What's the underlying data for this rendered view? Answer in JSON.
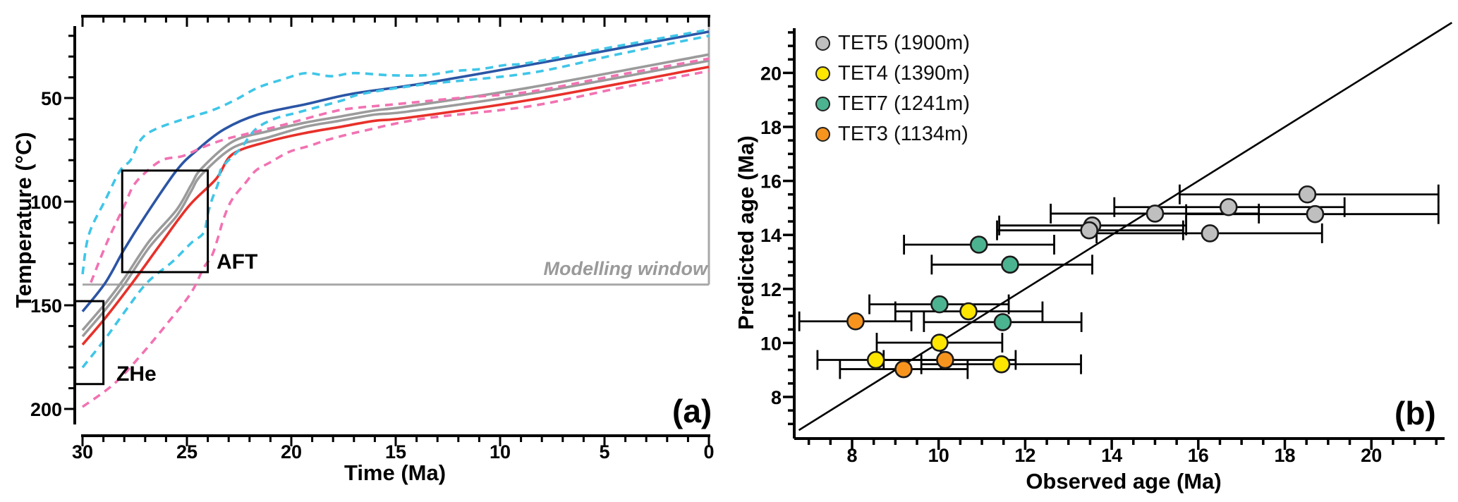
{
  "chart_data": [
    {
      "type": "line",
      "panel_label": "(a)",
      "xlabel": "Time (Ma)",
      "ylabel": "Temperature (°C)",
      "x_axis": {
        "min": 0,
        "max": 30,
        "reversed": true,
        "major_ticks": [
          30,
          25,
          20,
          15,
          10,
          5,
          0
        ],
        "minor_step_ma": 1
      },
      "y_axis": {
        "min": 10,
        "max": 210,
        "inverted": true,
        "major_ticks": [
          50,
          100,
          150,
          200
        ],
        "minor_step_c": 10
      },
      "modelling_window": {
        "label": "Modelling window",
        "temperature_c": 140,
        "right_edge_time_ma": 0,
        "line_color": "#a8a8a8"
      },
      "boxes": [
        {
          "label": "AFT",
          "time_range_ma": [
            24.0,
            28.1
          ],
          "temp_range_c": [
            85,
            134
          ]
        },
        {
          "label": "ZHe",
          "time_range_ma": [
            29.0,
            30.35
          ],
          "temp_range_c": [
            148,
            188
          ]
        }
      ],
      "series": [
        {
          "name": "gray-path-upper",
          "color": "#9b9b9b",
          "style": "solid",
          "points": [
            [
              30,
              162
            ],
            [
              28.9,
              149
            ],
            [
              28,
              137
            ],
            [
              26.8,
              119
            ],
            [
              25.5,
              104
            ],
            [
              24.8,
              92
            ],
            [
              24.3,
              84
            ],
            [
              22.8,
              71
            ],
            [
              21.1,
              66
            ],
            [
              19.4,
              62
            ],
            [
              17.7,
              59
            ],
            [
              16,
              56
            ],
            [
              14.4,
              54
            ],
            [
              8.6,
              45
            ],
            [
              0,
              29
            ]
          ]
        },
        {
          "name": "gray-path-lower",
          "color": "#9b9b9b",
          "style": "solid",
          "points": [
            [
              30,
              165
            ],
            [
              28.9,
              152
            ],
            [
              28,
              140
            ],
            [
              26.8,
              122
            ],
            [
              25.5,
              107
            ],
            [
              24.8,
              95
            ],
            [
              24.3,
              87
            ],
            [
              22.8,
              74
            ],
            [
              21.1,
              69
            ],
            [
              19.4,
              64
            ],
            [
              17.7,
              61
            ],
            [
              16,
              58
            ],
            [
              14.4,
              56.5
            ],
            [
              8.6,
              48
            ],
            [
              0,
              32
            ]
          ]
        },
        {
          "name": "blue-path",
          "color": "#2b55a5",
          "style": "solid",
          "points": [
            [
              30,
              153
            ],
            [
              28.9,
              139
            ],
            [
              28,
              123
            ],
            [
              27,
              107
            ],
            [
              25.5,
              85
            ],
            [
              24.5,
              75
            ],
            [
              23.2,
              65
            ],
            [
              21.6,
              58
            ],
            [
              19.3,
              53
            ],
            [
              17.1,
              48
            ],
            [
              13.7,
              43
            ],
            [
              8.6,
              34
            ],
            [
              0,
              18
            ]
          ]
        },
        {
          "name": "red-path",
          "color": "#e8302a",
          "style": "solid",
          "points": [
            [
              30,
              169
            ],
            [
              28.9,
              156
            ],
            [
              27.6,
              139
            ],
            [
              26.3,
              121
            ],
            [
              24.9,
              102
            ],
            [
              23.6,
              89
            ],
            [
              22.8,
              77
            ],
            [
              21.1,
              71
            ],
            [
              19.4,
              67
            ],
            [
              17.7,
              64
            ],
            [
              16,
              61
            ],
            [
              14.4,
              59.5
            ],
            [
              8.6,
              51
            ],
            [
              0,
              35
            ]
          ]
        },
        {
          "name": "cyan-envelope-upper",
          "color": "#3fc6e8",
          "style": "dashed",
          "points": [
            [
              30,
              135
            ],
            [
              29.7,
              116
            ],
            [
              28.9,
              99
            ],
            [
              28.2,
              85
            ],
            [
              27.7,
              80
            ],
            [
              27.2,
              70
            ],
            [
              26.5,
              65
            ],
            [
              25.1,
              60
            ],
            [
              23.8,
              56
            ],
            [
              22.7,
              51
            ],
            [
              21.6,
              45
            ],
            [
              20.4,
              41
            ],
            [
              19.3,
              38
            ],
            [
              18.1,
              39.5
            ],
            [
              17,
              38
            ],
            [
              15.3,
              39
            ],
            [
              13.6,
              39
            ],
            [
              12.2,
              37
            ],
            [
              10.9,
              36
            ],
            [
              9.7,
              34
            ],
            [
              8.6,
              33
            ],
            [
              4.4,
              25
            ],
            [
              0,
              17
            ]
          ]
        },
        {
          "name": "cyan-envelope-lower",
          "color": "#3fc6e8",
          "style": "dashed",
          "points": [
            [
              30,
              180
            ],
            [
              28.9,
              166
            ],
            [
              27.9,
              152
            ],
            [
              26.9,
              139
            ],
            [
              25.7,
              129
            ],
            [
              24.8,
              120
            ],
            [
              24.2,
              115
            ],
            [
              24,
              106
            ],
            [
              23.8,
              99
            ],
            [
              23.5,
              91
            ],
            [
              23.4,
              85
            ],
            [
              23.1,
              81
            ],
            [
              22.8,
              78
            ],
            [
              22.4,
              74
            ],
            [
              21.7,
              65
            ],
            [
              20.8,
              60
            ],
            [
              19.7,
              57
            ],
            [
              18.6,
              54
            ],
            [
              17.5,
              51
            ],
            [
              16.6,
              48
            ],
            [
              13.7,
              43.5
            ],
            [
              8.6,
              38
            ],
            [
              4.4,
              29
            ],
            [
              0,
              20
            ]
          ]
        },
        {
          "name": "pink-envelope-upper",
          "color": "#f272b2",
          "style": "dashed",
          "points": [
            [
              29.6,
              139
            ],
            [
              28.8,
              119
            ],
            [
              28,
              102
            ],
            [
              27.6,
              93
            ],
            [
              27.1,
              87
            ],
            [
              26.2,
              80
            ],
            [
              25.2,
              78
            ],
            [
              24.3,
              74
            ],
            [
              23.2,
              70
            ],
            [
              22,
              67
            ],
            [
              20.4,
              63
            ],
            [
              18.2,
              57
            ],
            [
              17.1,
              55
            ],
            [
              15,
              53
            ],
            [
              12,
              50
            ],
            [
              8.6,
              47
            ],
            [
              4.4,
              39
            ],
            [
              0,
              31
            ]
          ]
        },
        {
          "name": "pink-envelope-lower",
          "color": "#f272b2",
          "style": "dashed",
          "points": [
            [
              30,
              199
            ],
            [
              28.5,
              188
            ],
            [
              27.2,
              174
            ],
            [
              25.8,
              157
            ],
            [
              24.8,
              144
            ],
            [
              24.2,
              132
            ],
            [
              23.8,
              126
            ],
            [
              23.5,
              117
            ],
            [
              23.3,
              110
            ],
            [
              23,
              102
            ],
            [
              22.7,
              97
            ],
            [
              22.2,
              91
            ],
            [
              21.7,
              85
            ],
            [
              21,
              81
            ],
            [
              20.1,
              76
            ],
            [
              19.1,
              73
            ],
            [
              18.2,
              70
            ],
            [
              16.6,
              66
            ],
            [
              13.7,
              60
            ],
            [
              8.6,
              54
            ],
            [
              4.2,
              45
            ],
            [
              0,
              37
            ]
          ]
        }
      ]
    },
    {
      "type": "scatter",
      "panel_label": "(b)",
      "xlabel": "Observed age (Ma)",
      "ylabel": "Predicted age (Ma)",
      "x_axis": {
        "min": 6.7,
        "max": 21.7,
        "major_ticks": [
          8,
          10,
          12,
          14,
          16,
          18,
          20
        ],
        "minor_step_ma": 0.5
      },
      "y_axis": {
        "min": 6.5,
        "max": 21.7,
        "major_ticks": [
          8,
          10,
          12,
          14,
          16,
          18,
          20
        ],
        "minor_step_ma": 0.5
      },
      "one_to_one_line": true,
      "series": [
        {
          "name": "TET5 (1900m)",
          "color": "#bfbfbf",
          "points": [
            {
              "obs": 13.55,
              "pred": 14.35,
              "obs_lo": 11.4,
              "obs_hi": 15.72
            },
            {
              "obs": 13.48,
              "pred": 14.17,
              "obs_lo": 11.35,
              "obs_hi": 15.65
            },
            {
              "obs": 15.0,
              "pred": 14.79,
              "obs_lo": 12.59,
              "obs_hi": 17.4
            },
            {
              "obs": 16.27,
              "pred": 14.06,
              "obs_lo": 13.65,
              "obs_hi": 18.86
            },
            {
              "obs": 16.7,
              "pred": 15.03,
              "obs_lo": 14.06,
              "obs_hi": 19.38
            },
            {
              "obs": 18.52,
              "pred": 15.5,
              "obs_lo": 15.57,
              "obs_hi": 21.55
            },
            {
              "obs": 18.7,
              "pred": 14.77,
              "obs_lo": 15.72,
              "obs_hi": 21.55
            }
          ]
        },
        {
          "name": "TET4 (1390m)",
          "color": "#ffe600",
          "points": [
            {
              "obs": 10.69,
              "pred": 11.17,
              "obs_lo": 9.0,
              "obs_hi": 12.4
            },
            {
              "obs": 10.02,
              "pred": 10.01,
              "obs_lo": 8.57,
              "obs_hi": 11.47
            },
            {
              "obs": 8.55,
              "pred": 9.37,
              "obs_lo": 7.2,
              "obs_hi": 10.05
            },
            {
              "obs": 11.45,
              "pred": 9.21,
              "obs_lo": 9.6,
              "obs_hi": 13.29
            }
          ]
        },
        {
          "name": "TET7 (1241m)",
          "color": "#4cb391",
          "points": [
            {
              "obs": 10.93,
              "pred": 13.64,
              "obs_lo": 9.2,
              "obs_hi": 12.67
            },
            {
              "obs": 11.65,
              "pred": 12.9,
              "obs_lo": 9.84,
              "obs_hi": 13.55
            },
            {
              "obs": 10.02,
              "pred": 11.43,
              "obs_lo": 8.4,
              "obs_hi": 11.62
            },
            {
              "obs": 11.48,
              "pred": 10.77,
              "obs_lo": 9.66,
              "obs_hi": 13.3
            }
          ]
        },
        {
          "name": "TET3 (1134m)",
          "color": "#f7941e",
          "points": [
            {
              "obs": 8.08,
              "pred": 10.8,
              "obs_lo": 6.78,
              "obs_hi": 9.37
            },
            {
              "obs": 10.15,
              "pred": 9.37,
              "obs_lo": 8.73,
              "obs_hi": 11.78
            },
            {
              "obs": 9.19,
              "pred": 9.03,
              "obs_lo": 7.72,
              "obs_hi": 10.67
            }
          ]
        }
      ]
    }
  ],
  "colors": {
    "axis": "#000000",
    "modelling_window": "#a8a8a8",
    "marker_outline": "#1a1a1a"
  }
}
